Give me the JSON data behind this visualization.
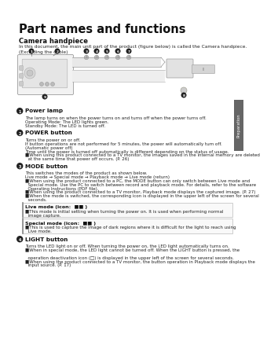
{
  "title": "Part names and functions",
  "section_title": "Camera handpiece",
  "section_desc": "In this document, the main unit part of the product (figure below) is called the Camera handpiece.\n(Excluding the cable)",
  "page_bg": "#ffffff",
  "sidebar_color": "#666666",
  "sidebar_text": "Preparation",
  "items": [
    {
      "num": "1",
      "title": "Power lamp",
      "body_lines": [
        "The lamp turns on when the power turns on and turns off when the power turns off.",
        "Operating Mode: The LED lights green.",
        "Standby Mode: The LED is turned off."
      ]
    },
    {
      "num": "2",
      "title": "POWER button",
      "body_lines": [
        "Turns the power on or off.",
        "If button operations are not performed for 5 minutes, the power will automatically turn off.",
        "(Automatic power off)",
        "Time until the power is turned off automatically is different depending on the status of usage.",
        "■When using this product connected to a TV monitor, the images saved in the internal memory are deleted",
        "  at the same time that power off occurs. (P. 26)"
      ]
    },
    {
      "num": "3",
      "title": "MODE button",
      "body_lines": [
        "This switches the modes of the product as shown below.",
        "Live mode → Special mode → Playback mode → Live mode (return)",
        "■When using the product connected to a PC, the MODE button can only switch between Live mode and",
        "  Special mode. Use the PC to switch between record and playback mode. For details, refer to the software",
        "  Operating Instructions (PDF file).",
        "■When using the product connected to a TV monitor, Playback mode displays the captured image. (P. 27)",
        "■When the mode is switched, the corresponding icon is displayed in the upper left of the screen for several",
        "  seconds."
      ]
    },
    {
      "boxed": true,
      "title": "Live mode (icon:  ■■ )",
      "body_lines": [
        "■This mode is initial setting when turning the power on. It is used when performing normal",
        "  image capture."
      ]
    },
    {
      "boxed": true,
      "title": "Special mode (icon:  ■■ )",
      "body_lines": [
        "■This is used to capture the image of dark regions where it is difficult for the light to reach using",
        "  Live mode."
      ]
    },
    {
      "num": "4",
      "title": "LIGHT button",
      "body_lines": [
        "Turns the LED light on or off. When turning the power on, the LED light automatically turns on.",
        "■When in special mode, the LED light cannot be turned off. When the LIGHT button is pressed, the",
        "",
        "  operation deactivation icon (□) is displayed in the upper left of the screen for several seconds.",
        "■When using the product connected to a TV monitor, the button operation in Playback mode displays the",
        "  input source. (P. 17)"
      ]
    }
  ]
}
